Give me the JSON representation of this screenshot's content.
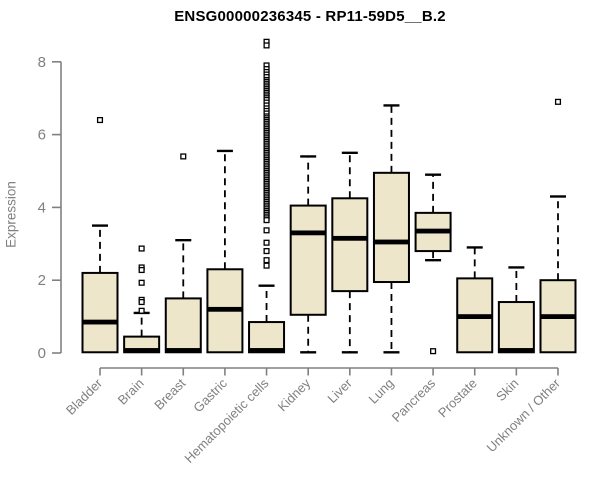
{
  "chart_data": {
    "type": "boxplot",
    "title": "ENSG00000236345 - RP11-59D5__B.2",
    "xlabel": "",
    "ylabel": "Expression",
    "ylim": [
      0,
      8
    ],
    "yticks": [
      0,
      2,
      4,
      6,
      8
    ],
    "grid": false,
    "legend": "none",
    "categories": [
      "Bladder",
      "Brain",
      "Breast",
      "Gastric",
      "Hematopoietic cells",
      "Kidney",
      "Liver",
      "Lung",
      "Pancreas",
      "Prostate",
      "Skin",
      "Unknown / Other"
    ],
    "series": [
      {
        "name": "Bladder",
        "q1": 0.02,
        "median": 0.85,
        "q3": 2.2,
        "whisker_low": 0.02,
        "whisker_high": 3.5,
        "outliers": [
          6.4
        ]
      },
      {
        "name": "Brain",
        "q1": 0.02,
        "median": 0.07,
        "q3": 0.45,
        "whisker_low": 0.02,
        "whisker_high": 1.1,
        "outliers": [
          2.87,
          2.35,
          2.28,
          1.93,
          1.46,
          1.4,
          1.16
        ]
      },
      {
        "name": "Breast",
        "q1": 0.02,
        "median": 0.07,
        "q3": 1.5,
        "whisker_low": 0.02,
        "whisker_high": 3.1,
        "outliers": [
          5.4
        ]
      },
      {
        "name": "Gastric",
        "q1": 0.02,
        "median": 1.2,
        "q3": 2.3,
        "whisker_low": 0.02,
        "whisker_high": 5.55,
        "outliers": []
      },
      {
        "name": "Hematopoietic cells",
        "q1": 0.02,
        "median": 0.07,
        "q3": 0.85,
        "whisker_low": 0.02,
        "whisker_high": 1.85,
        "outliers": [
          8.55,
          8.45,
          7.9,
          7.8,
          7.72,
          7.65,
          7.58,
          7.5,
          7.45,
          7.4,
          7.35,
          7.3,
          7.25,
          7.2,
          7.15,
          7.1,
          7.05,
          7.0,
          6.95,
          6.88,
          6.8,
          6.72,
          6.65,
          6.58,
          6.5,
          6.45,
          6.4,
          6.35,
          6.3,
          6.25,
          6.2,
          6.15,
          6.1,
          6.05,
          6.0,
          5.95,
          5.9,
          5.85,
          5.8,
          5.75,
          5.7,
          5.65,
          5.6,
          5.55,
          5.5,
          5.45,
          5.4,
          5.35,
          5.3,
          5.25,
          5.2,
          5.15,
          5.1,
          5.05,
          5.0,
          4.95,
          4.9,
          4.85,
          4.8,
          4.75,
          4.7,
          4.65,
          4.6,
          4.55,
          4.5,
          4.45,
          4.4,
          4.35,
          4.3,
          4.25,
          4.2,
          4.15,
          4.1,
          4.05,
          4.0,
          3.95,
          3.9,
          3.85,
          3.8,
          3.75,
          3.7,
          3.65,
          3.37,
          3.03,
          2.8,
          2.55,
          2.4
        ]
      },
      {
        "name": "Kidney",
        "q1": 1.05,
        "median": 3.3,
        "q3": 4.05,
        "whisker_low": 0.02,
        "whisker_high": 5.4,
        "outliers": []
      },
      {
        "name": "Liver",
        "q1": 1.7,
        "median": 3.15,
        "q3": 4.25,
        "whisker_low": 0.02,
        "whisker_high": 5.5,
        "outliers": []
      },
      {
        "name": "Lung",
        "q1": 1.95,
        "median": 3.05,
        "q3": 4.95,
        "whisker_low": 0.02,
        "whisker_high": 6.8,
        "outliers": []
      },
      {
        "name": "Pancreas",
        "q1": 2.8,
        "median": 3.35,
        "q3": 3.85,
        "whisker_low": 2.55,
        "whisker_high": 4.9,
        "outliers": [
          0.05
        ]
      },
      {
        "name": "Prostate",
        "q1": 0.02,
        "median": 1.0,
        "q3": 2.05,
        "whisker_low": 0.02,
        "whisker_high": 2.9,
        "outliers": []
      },
      {
        "name": "Skin",
        "q1": 0.02,
        "median": 0.07,
        "q3": 1.4,
        "whisker_low": 0.02,
        "whisker_high": 2.35,
        "outliers": []
      },
      {
        "name": "Unknown / Other",
        "q1": 0.02,
        "median": 1.0,
        "q3": 2.0,
        "whisker_low": 0.02,
        "whisker_high": 4.3,
        "outliers": [
          6.9
        ]
      }
    ],
    "colors": {
      "box_fill": "#ede6cb",
      "box_border": "#000000",
      "median": "#000000",
      "whisker": "#000000",
      "outlier_fill": "#ffffff",
      "outlier_border": "#000000",
      "axis": "#808080",
      "tick_label": "#808080",
      "title": "#000000",
      "background": "#ffffff"
    }
  }
}
